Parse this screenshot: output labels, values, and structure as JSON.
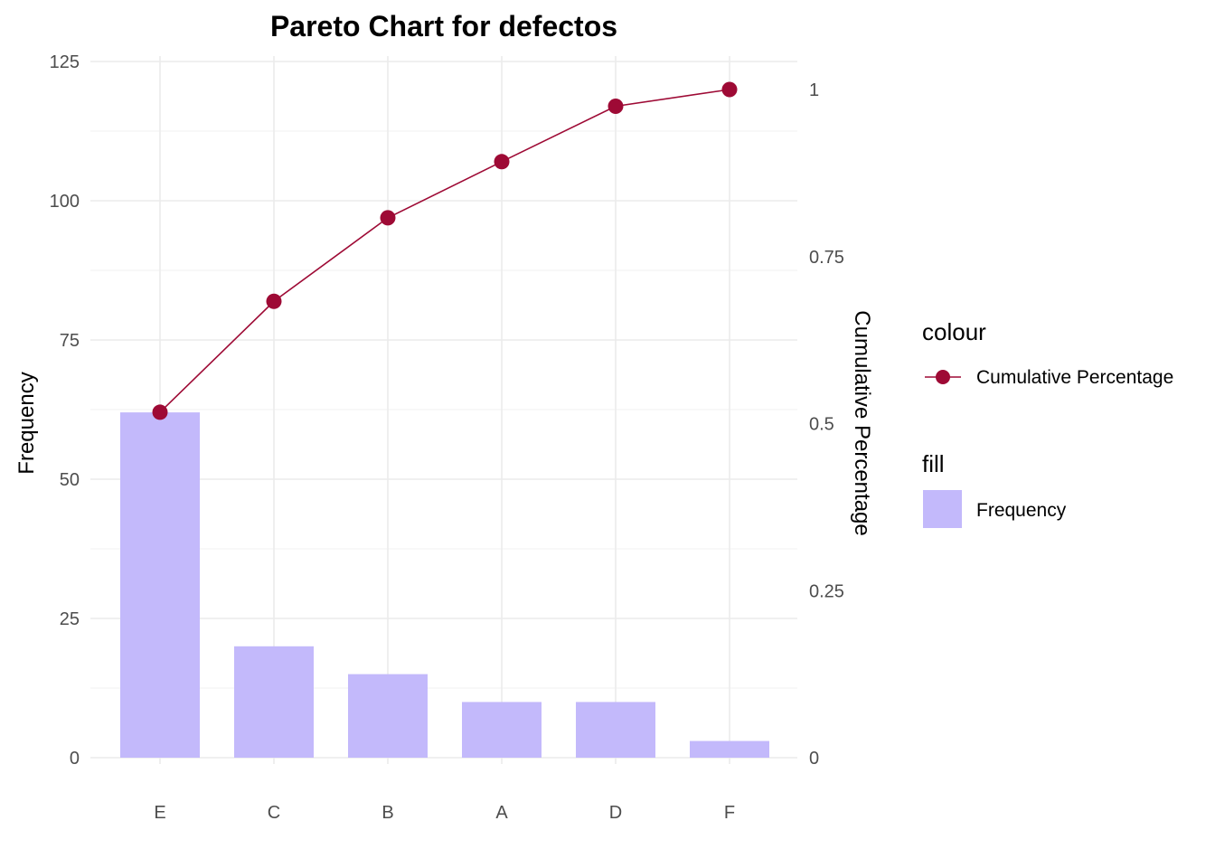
{
  "chart_data": {
    "type": "bar",
    "title": "Pareto Chart for defectos",
    "xlabel": "",
    "ylabel": "Frequency",
    "y2label": "Cumulative Percentage",
    "categories": [
      "E",
      "C",
      "B",
      "A",
      "D",
      "F"
    ],
    "series": [
      {
        "name": "Frequency",
        "type": "bar",
        "axis": "left",
        "values": [
          62,
          20,
          15,
          10,
          10,
          3
        ]
      },
      {
        "name": "Cumulative Percentage",
        "type": "line",
        "axis": "right",
        "values": [
          0.517,
          0.683,
          0.808,
          0.892,
          0.975,
          1.0
        ]
      }
    ],
    "ylim": [
      0,
      125
    ],
    "y2lim": [
      0,
      1.0
    ],
    "yticks": [
      "0",
      "25",
      "50",
      "75",
      "100",
      "125"
    ],
    "y2ticks": [
      "0",
      "0.25",
      "0.5",
      "0.75",
      "1"
    ],
    "grid": true,
    "legend": {
      "placement": "right",
      "groups": [
        {
          "title": "colour",
          "entries": [
            {
              "label": "Cumulative Percentage",
              "kind": "line-point",
              "color": "#9e0a35"
            }
          ]
        },
        {
          "title": "fill",
          "entries": [
            {
              "label": "Frequency",
              "kind": "box",
              "color": "#c3b9fb"
            }
          ]
        }
      ]
    },
    "colors": {
      "bar": "#c3b9fb",
      "line": "#9e0a35"
    }
  }
}
